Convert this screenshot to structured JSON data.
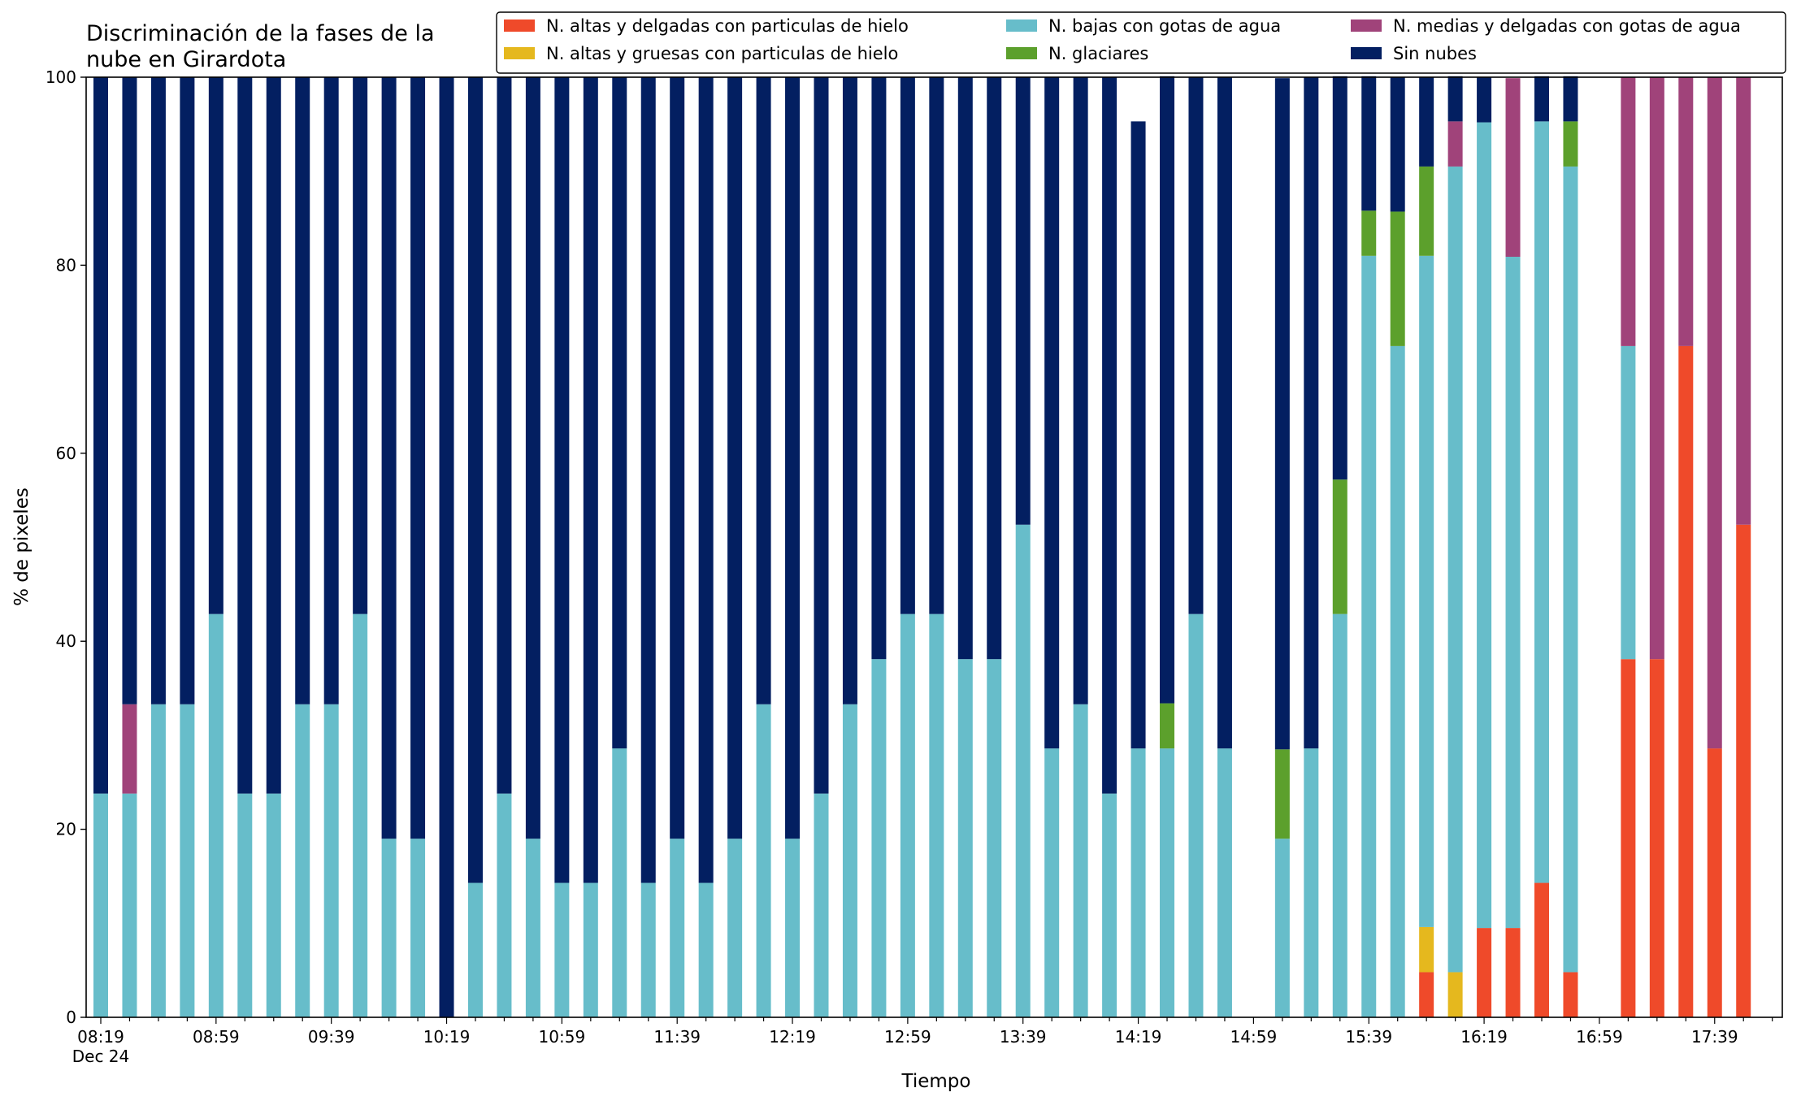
{
  "chart_data": {
    "type": "bar",
    "stacked": true,
    "title_line1": "Discriminación de la fases de la",
    "title_line2": "nube en Girardota",
    "xlabel": "Tiempo",
    "ylabel": "% de pixeles",
    "ylim": [
      0,
      100
    ],
    "yticks": [
      "0",
      "20",
      "40",
      "60",
      "80",
      "100"
    ],
    "xticks": [
      "08:19",
      "08:59",
      "09:39",
      "10:19",
      "10:59",
      "11:39",
      "12:19",
      "12:59",
      "13:39",
      "14:19",
      "14:59",
      "15:39",
      "16:19",
      "16:59",
      "17:39"
    ],
    "xtick_sub": "Dec 24",
    "grid": false,
    "legend_position": "top-right",
    "categories": [
      "08:19",
      "08:29",
      "08:39",
      "08:49",
      "08:59",
      "09:09",
      "09:19",
      "09:29",
      "09:39",
      "09:49",
      "09:59",
      "10:09",
      "10:19",
      "10:29",
      "10:39",
      "10:49",
      "10:59",
      "11:09",
      "11:19",
      "11:29",
      "11:39",
      "11:49",
      "11:59",
      "12:09",
      "12:19",
      "12:29",
      "12:39",
      "12:49",
      "12:59",
      "13:09",
      "13:19",
      "13:29",
      "13:39",
      "13:49",
      "13:59",
      "14:09",
      "14:19",
      "14:29",
      "14:39",
      "14:49",
      "14:59",
      "15:09",
      "15:19",
      "15:29",
      "15:39",
      "15:49",
      "15:59",
      "16:09",
      "16:19",
      "16:29",
      "16:39",
      "16:49",
      "16:59",
      "17:09",
      "17:19",
      "17:29",
      "17:39",
      "17:49"
    ],
    "series": [
      {
        "name": "N. altas y delgadas con particulas de hielo",
        "color": "#ef4a2a",
        "values": [
          0,
          0,
          0,
          0,
          0,
          0,
          0,
          0,
          0,
          0,
          0,
          0,
          0,
          0,
          0,
          0,
          0,
          0,
          0,
          0,
          0,
          0,
          0,
          0,
          0,
          0,
          0,
          0,
          0,
          0,
          0,
          0,
          0,
          0,
          0,
          0,
          0,
          0,
          0,
          0,
          0,
          0,
          0,
          0,
          0,
          0,
          4.8,
          0,
          9.5,
          9.5,
          14.3,
          4.8,
          0,
          38.1,
          38.1,
          71.4,
          28.6,
          52.4
        ]
      },
      {
        "name": "N. altas y gruesas con particulas de hielo",
        "color": "#e5b81e",
        "values": [
          0,
          0,
          0,
          0,
          0,
          0,
          0,
          0,
          0,
          0,
          0,
          0,
          0,
          0,
          0,
          0,
          0,
          0,
          0,
          0,
          0,
          0,
          0,
          0,
          0,
          0,
          0,
          0,
          0,
          0,
          0,
          0,
          0,
          0,
          0,
          0,
          0,
          0,
          0,
          0,
          0,
          0,
          0,
          0,
          0,
          0,
          4.8,
          4.8,
          0,
          0,
          0,
          0,
          0,
          0,
          0,
          0,
          0,
          0
        ]
      },
      {
        "name": "N. bajas con gotas de agua",
        "color": "#67bdca",
        "values": [
          23.8,
          23.8,
          33.3,
          33.3,
          42.9,
          23.8,
          23.8,
          33.3,
          33.3,
          42.9,
          19.0,
          19.0,
          0,
          14.3,
          23.8,
          19.0,
          14.3,
          14.3,
          28.6,
          14.3,
          19.0,
          14.3,
          19.0,
          33.3,
          19.0,
          23.8,
          33.3,
          38.1,
          42.9,
          42.9,
          38.1,
          38.1,
          52.4,
          28.6,
          33.3,
          23.8,
          28.6,
          28.6,
          42.9,
          28.6,
          0,
          19.0,
          28.6,
          42.9,
          81.0,
          71.4,
          71.4,
          85.7,
          85.7,
          71.4,
          81.0,
          85.7,
          0,
          33.3,
          0,
          0,
          0,
          0
        ]
      },
      {
        "name": "N. glaciares",
        "color": "#5ca02c",
        "values": [
          0,
          0,
          0,
          0,
          0,
          0,
          0,
          0,
          0,
          0,
          0,
          0,
          0,
          0,
          0,
          0,
          0,
          0,
          0,
          0,
          0,
          0,
          0,
          0,
          0,
          0,
          0,
          0,
          0,
          0,
          0,
          0,
          0,
          0,
          0,
          0,
          0,
          4.8,
          0,
          0,
          0,
          9.5,
          0,
          14.3,
          4.8,
          14.3,
          9.5,
          0,
          0,
          0,
          0,
          4.8,
          0,
          0,
          0,
          0,
          0,
          0
        ]
      },
      {
        "name": "N. medias y delgadas con gotas de agua",
        "color": "#a0437a",
        "values": [
          0,
          9.5,
          0,
          0,
          0,
          0,
          0,
          0,
          0,
          0,
          0,
          0,
          0,
          0,
          0,
          0,
          0,
          0,
          0,
          0,
          0,
          0,
          0,
          0,
          0,
          0,
          0,
          0,
          0,
          0,
          0,
          0,
          0,
          0,
          0,
          0,
          0,
          0,
          0,
          0,
          0,
          0,
          0,
          0,
          0,
          0,
          0,
          4.8,
          0,
          19.0,
          0,
          0,
          0,
          28.6,
          61.9,
          28.6,
          71.4,
          47.6
        ]
      },
      {
        "name": "Sin nubes",
        "color": "#031f61",
        "values": [
          76.2,
          66.7,
          66.7,
          66.7,
          57.1,
          76.2,
          76.2,
          66.7,
          66.7,
          57.1,
          81.0,
          81.0,
          100,
          85.7,
          76.2,
          81.0,
          85.7,
          85.7,
          71.4,
          85.7,
          81.0,
          85.7,
          81.0,
          66.7,
          81.0,
          76.2,
          66.7,
          61.9,
          57.1,
          57.1,
          61.9,
          61.9,
          47.6,
          71.4,
          66.7,
          76.2,
          66.7,
          66.7,
          57.1,
          71.4,
          0,
          71.4,
          71.4,
          42.9,
          14.3,
          14.3,
          9.5,
          4.8,
          4.8,
          0,
          4.8,
          4.8,
          0,
          0,
          0,
          0,
          0,
          0
        ]
      }
    ]
  }
}
